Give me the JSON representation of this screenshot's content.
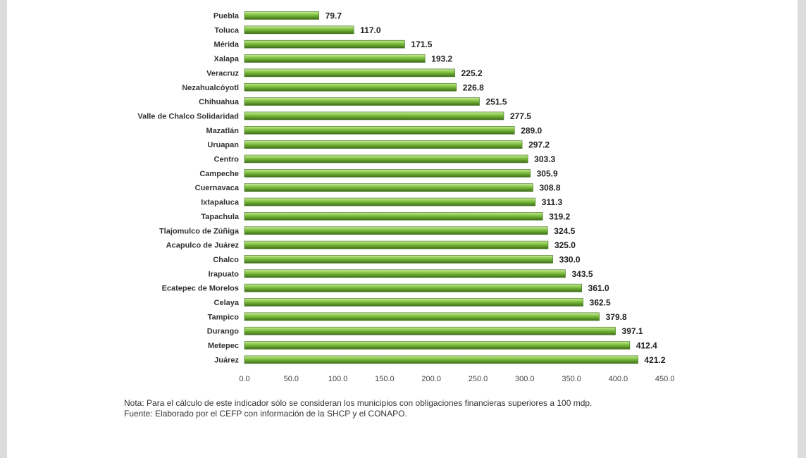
{
  "chart_data": {
    "type": "bar",
    "orientation": "horizontal",
    "categories": [
      "Puebla",
      "Toluca",
      "Mérida",
      "Xalapa",
      "Veracruz",
      "Nezahualcóyotl",
      "Chihuahua",
      "Valle de Chalco Solidaridad",
      "Mazatlán",
      "Uruapan",
      "Centro",
      "Campeche",
      "Cuernavaca",
      "Ixtapaluca",
      "Tapachula",
      "Tlajomulco de Zúñiga",
      "Acapulco de Juárez",
      "Chalco",
      "Irapuato",
      "Ecatepec de Morelos",
      "Celaya",
      "Tampico",
      "Durango",
      "Metepec",
      "Juárez"
    ],
    "values": [
      79.7,
      117.0,
      171.5,
      193.2,
      225.2,
      226.8,
      251.5,
      277.5,
      289.0,
      297.2,
      303.3,
      305.9,
      308.8,
      311.3,
      319.2,
      324.5,
      325.0,
      330.0,
      343.5,
      361.0,
      362.5,
      379.8,
      397.1,
      412.4,
      421.2
    ],
    "value_labels": [
      "79.7",
      "117.0",
      "171.5",
      "193.2",
      "225.2",
      "226.8",
      "251.5",
      "277.5",
      "289.0",
      "297.2",
      "303.3",
      "305.9",
      "308.8",
      "311.3",
      "319.2",
      "324.5",
      "325.0",
      "330.0",
      "343.5",
      "361.0",
      "362.5",
      "379.8",
      "397.1",
      "412.4",
      "421.2"
    ],
    "xlim": [
      0,
      450
    ],
    "xticks": [
      "0.0",
      "50.0",
      "100.0",
      "150.0",
      "200.0",
      "250.0",
      "300.0",
      "350.0",
      "400.0",
      "450.0"
    ],
    "title": "",
    "xlabel": "",
    "ylabel": "",
    "grid": false,
    "legend": "none",
    "bar_color": "#7cbf3c",
    "bar_highlight": "#c9ec9a",
    "bar_shadow": "#3e6e19"
  },
  "notes": {
    "nota": "Nota: Para el cálculo de este indicador sólo se consideran los municipios con obligaciones financieras superiores a 100 mdp.",
    "fuente": "Fuente:  Elaborado por el CEFP con información de la SHCP y el CONAPO."
  }
}
